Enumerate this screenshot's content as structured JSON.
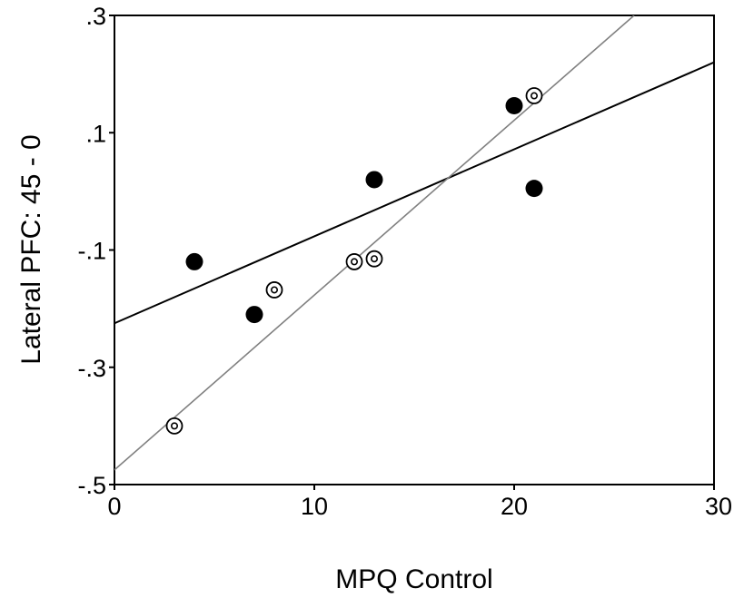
{
  "chart_data": {
    "type": "scatter",
    "title": "",
    "xlabel": "MPQ Control",
    "ylabel": "Lateral PFC: 45 - 0",
    "xlim": [
      0,
      30
    ],
    "ylim": [
      -0.5,
      0.3
    ],
    "x_ticks": [
      {
        "value": 0,
        "label": "0"
      },
      {
        "value": 10,
        "label": "10"
      },
      {
        "value": 20,
        "label": "20"
      },
      {
        "value": 30,
        "label": "30"
      }
    ],
    "y_ticks": [
      {
        "value": 0.3,
        "label": ".3"
      },
      {
        "value": 0.1,
        "label": ".1"
      },
      {
        "value": -0.1,
        "label": "-.1"
      },
      {
        "value": -0.3,
        "label": "-.3"
      },
      {
        "value": -0.5,
        "label": "-.5"
      }
    ],
    "grid": false,
    "series": [
      {
        "marker": "filled-circle",
        "color": "#000000",
        "points": [
          {
            "x": 4,
            "y": -0.12
          },
          {
            "x": 7,
            "y": -0.21
          },
          {
            "x": 13,
            "y": 0.02
          },
          {
            "x": 20,
            "y": 0.146
          },
          {
            "x": 21,
            "y": 0.005
          }
        ],
        "fit_line": {
          "color": "#000000",
          "x": [
            0,
            30
          ],
          "y": [
            -0.225,
            0.22
          ]
        }
      },
      {
        "marker": "open-circle-dot",
        "color": "#000000",
        "points": [
          {
            "x": 3,
            "y": -0.4
          },
          {
            "x": 8,
            "y": -0.168
          },
          {
            "x": 12,
            "y": -0.12
          },
          {
            "x": 13,
            "y": -0.115
          },
          {
            "x": 21,
            "y": 0.163
          }
        ],
        "fit_line": {
          "color": "#808080",
          "x": [
            0,
            26
          ],
          "y": [
            -0.475,
            0.3
          ]
        }
      }
    ]
  }
}
